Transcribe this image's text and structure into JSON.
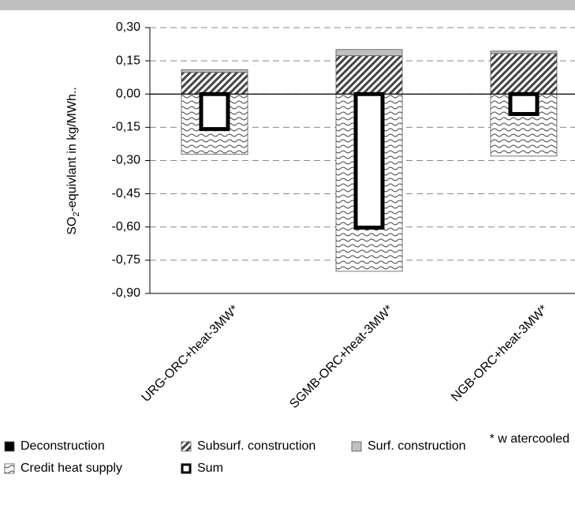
{
  "chart_data": {
    "type": "stacked_bar",
    "y_label": {
      "main": "SO",
      "sub": "2",
      "rest": "-equivlant in kg/MWh.."
    },
    "annotation": "* w atercooled",
    "categories": [
      "URG-ORC+heat-3MW*",
      "SGMB-ORC+heat-3MW*",
      "NGB-ORC+heat-3MW*"
    ],
    "series": [
      {
        "name": "Deconstruction",
        "color": "#000000",
        "pattern": "solid",
        "values": [
          0,
          0,
          0
        ]
      },
      {
        "name": "Subsurf. construction",
        "color": "#444444",
        "pattern": "hatch",
        "values": [
          0.098,
          0.173,
          0.183
        ]
      },
      {
        "name": "Surf. construction",
        "color": "#c0c0c0",
        "pattern": "solid",
        "values": [
          0.012,
          0.028,
          0.011
        ]
      },
      {
        "name": "Credit heat supply",
        "color": "#444444",
        "pattern": "wave",
        "values": [
          -0.272,
          -0.8,
          -0.28
        ]
      },
      {
        "name": "Sum",
        "color": "#000000",
        "pattern": "outline",
        "values": [
          -0.158,
          -0.603,
          -0.09
        ]
      }
    ],
    "ylim": [
      -0.9,
      0.3
    ],
    "yticks": [
      {
        "value": 0.3,
        "label": "0,30"
      },
      {
        "value": 0.15,
        "label": "0,15"
      },
      {
        "value": 0,
        "label": "0,00"
      },
      {
        "value": -0.15,
        "label": "-0,15"
      },
      {
        "value": -0.3,
        "label": "-0,30"
      },
      {
        "value": -0.45,
        "label": "-0,45"
      },
      {
        "value": -0.6,
        "label": "-0,60"
      },
      {
        "value": -0.75,
        "label": "-0,75"
      },
      {
        "value": -0.9,
        "label": "-0,90"
      }
    ],
    "grid": true
  }
}
